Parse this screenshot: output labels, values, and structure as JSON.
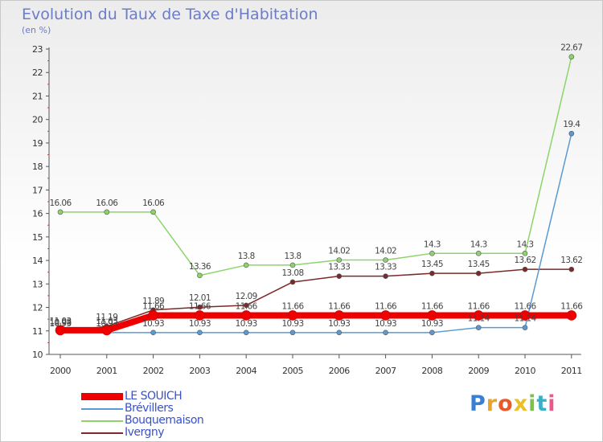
{
  "title": "Evolution du Taux de Taxe d'Habitation",
  "subtitle": "(en %)",
  "logo": {
    "letters": [
      "P",
      "r",
      "o",
      "x",
      "i",
      "t",
      "i"
    ],
    "colors": [
      "#3a7fd4",
      "#e8a52a",
      "#e85a2a",
      "#e8c02a",
      "#7ac24a",
      "#3ab0c8",
      "#e85a8a"
    ]
  },
  "chart_data": {
    "type": "line",
    "title": "Evolution du Taux de Taxe d'Habitation",
    "ylabel": "(en %)",
    "xlabel": "",
    "categories": [
      "2000",
      "2001",
      "2002",
      "2003",
      "2004",
      "2005",
      "2006",
      "2007",
      "2008",
      "2009",
      "2010",
      "2011"
    ],
    "ylim": [
      10,
      23
    ],
    "yticks": [
      "10",
      "11",
      "12",
      "13",
      "14",
      "15",
      "16",
      "17",
      "18",
      "19",
      "20",
      "21",
      "22",
      "23"
    ],
    "series": [
      {
        "name": "Ivergny",
        "color": "#7a2a2a",
        "values": [
          10.98,
          11.19,
          11.89,
          12.01,
          12.09,
          13.08,
          13.33,
          13.33,
          13.45,
          13.45,
          13.62,
          13.62
        ],
        "labels": [
          "10.98",
          "11.19",
          "11.89",
          "12.01",
          "12.09",
          "13.08",
          "13.33",
          "13.33",
          "13.45",
          "13.45",
          "13.62",
          "13.62"
        ]
      },
      {
        "name": "Bouquemaison",
        "color": "#8cd46a",
        "values": [
          16.06,
          16.06,
          16.06,
          13.36,
          13.8,
          13.8,
          14.02,
          14.02,
          14.3,
          14.3,
          14.3,
          22.67
        ],
        "labels": [
          "16.06",
          "16.06",
          "16.06",
          "13.36",
          "13.8",
          "13.8",
          "14.02",
          "14.02",
          "14.3",
          "14.3",
          "14.3",
          "22.67"
        ]
      },
      {
        "name": "Brévillers",
        "color": "#5a9ad4",
        "values": [
          10.93,
          10.93,
          10.93,
          10.93,
          10.93,
          10.93,
          10.93,
          10.93,
          10.93,
          11.14,
          11.14,
          19.4
        ],
        "labels": [
          "10.93",
          "10.93",
          "10.93",
          "10.93",
          "10.93",
          "10.93",
          "10.93",
          "10.93",
          "10.93",
          "11.14",
          "11.14",
          "19.4"
        ]
      },
      {
        "name": "LE SOUICH",
        "color": "#ee0000",
        "values": [
          11.03,
          11.03,
          11.66,
          11.66,
          11.66,
          11.66,
          11.66,
          11.66,
          11.66,
          11.66,
          11.66,
          11.66
        ],
        "labels": [
          "11.03",
          "11.03",
          "11.66",
          "11.66",
          "11.66",
          "11.66",
          "11.66",
          "11.66",
          "11.66",
          "11.66",
          "11.66",
          "11.66"
        ]
      }
    ]
  },
  "legend": [
    {
      "name": "LE SOUICH",
      "color": "#ee0000"
    },
    {
      "name": "Brévillers",
      "color": "#5a9ad4"
    },
    {
      "name": "Bouquemaison",
      "color": "#8cd46a"
    },
    {
      "name": "Ivergny",
      "color": "#7a2a2a"
    }
  ]
}
